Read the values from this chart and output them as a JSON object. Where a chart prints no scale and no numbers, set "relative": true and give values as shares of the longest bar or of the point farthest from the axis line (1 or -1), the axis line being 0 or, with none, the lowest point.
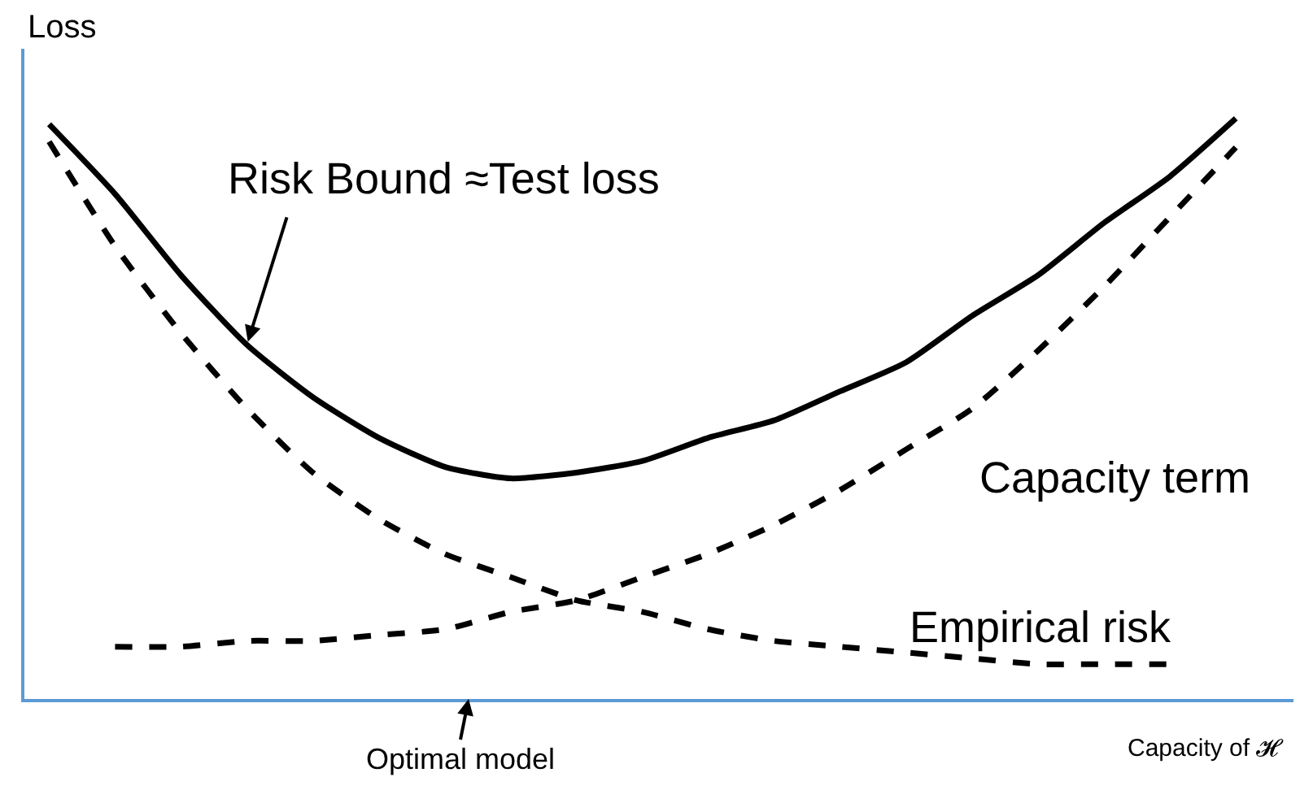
{
  "chart_data": {
    "type": "line",
    "relative": true,
    "xlabel": "Capacity of 𝓗",
    "ylabel": "Loss",
    "categories": [
      null,
      null,
      null,
      null,
      null,
      null,
      null,
      null,
      null,
      null,
      null,
      null,
      null,
      null,
      null,
      null,
      null,
      null,
      null
    ],
    "series": [
      {
        "name": "Risk Bound ≈Test loss",
        "color": "#000000",
        "line_style": "solid",
        "values": [
          0.99,
          0.87,
          0.73,
          0.61,
          0.52,
          0.45,
          0.4,
          0.38,
          0.39,
          0.41,
          0.45,
          0.48,
          0.53,
          0.58,
          0.66,
          0.73,
          0.82,
          0.9,
          1.0
        ]
      },
      {
        "name": "Capacity term",
        "color": "#000000",
        "line_style": "dashed",
        "values": [
          null,
          0.09,
          0.09,
          0.1,
          0.1,
          0.11,
          0.12,
          0.15,
          0.17,
          0.21,
          0.25,
          0.3,
          0.36,
          0.43,
          0.5,
          0.6,
          0.71,
          0.83,
          0.95
        ]
      },
      {
        "name": "Empirical risk",
        "color": "#000000",
        "line_style": "dashed",
        "values": [
          0.96,
          0.78,
          0.63,
          0.5,
          0.39,
          0.31,
          0.25,
          0.21,
          0.17,
          0.15,
          0.12,
          0.1,
          0.09,
          0.08,
          0.07,
          0.06,
          0.06,
          0.06,
          null
        ]
      }
    ],
    "annotations": [
      "Optimal model"
    ],
    "tick_labels": false,
    "legend": false
  }
}
